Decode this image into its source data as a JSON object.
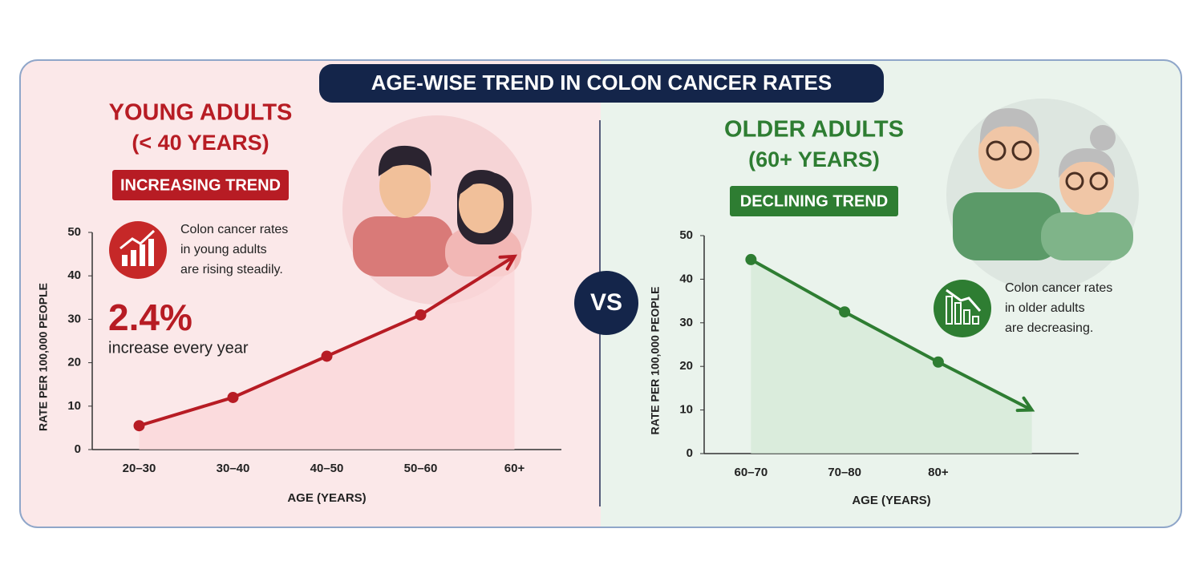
{
  "title": "AGE-WISE TREND IN COLON CANCER RATES",
  "vs": "VS",
  "chart_data": [
    {
      "type": "line",
      "title": "YOUNG ADULTS",
      "subtitle": "(< 40 YEARS)",
      "badge": "INCREASING TREND",
      "annotation": [
        "Colon cancer rates",
        "in young adults",
        "are rising steadily."
      ],
      "stat": "2.4%",
      "stat_label": "increase every year",
      "ylabel": "RATE PER 100,000 PEOPLE",
      "xlabel": "AGE (YEARS)",
      "categories": [
        "20–30",
        "30–40",
        "40–50",
        "50–60",
        "60+"
      ],
      "values": [
        5.5,
        12,
        21.5,
        31,
        44.5
      ],
      "highlight_category": "30–40",
      "color": "#b71c24",
      "ylim": [
        0,
        50
      ],
      "yticks": [
        0,
        10,
        20,
        30,
        40,
        50
      ]
    },
    {
      "type": "line",
      "title": "OLDER ADULTS",
      "subtitle": "(60+ YEARS)",
      "badge": "DECLINING TREND",
      "annotation": [
        "Colon cancer rates",
        "in older adults",
        "are decreasing."
      ],
      "ylabel": "RATE PER 100,000 PEOPLE",
      "xlabel": "AGE (YEARS)",
      "categories": [
        "60–70",
        "70–80",
        "80+",
        null
      ],
      "values": [
        44.5,
        32.5,
        21,
        10
      ],
      "color": "#2e7d32",
      "ylim": [
        0,
        50
      ],
      "yticks": [
        0,
        10,
        20,
        30,
        40,
        50
      ]
    }
  ]
}
